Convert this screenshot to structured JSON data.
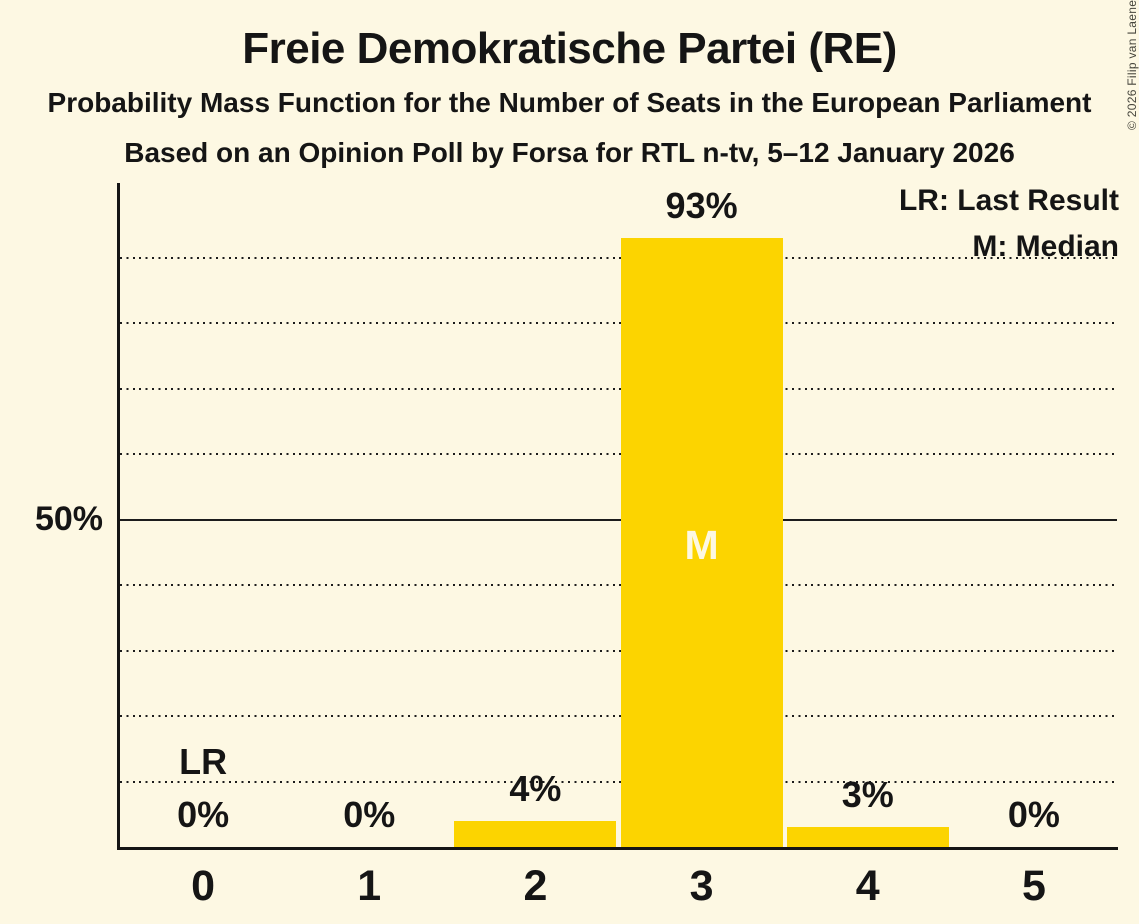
{
  "title": "Freie Demokratische Partei (RE)",
  "subtitle": "Probability Mass Function for the Number of Seats in the European Parliament",
  "source_line": "Based on an Opinion Poll by Forsa for RTL n-tv, 5–12 January 2026",
  "copyright": "© 2026 Filip van Laenen",
  "legend": {
    "last_result": "LR: Last Result",
    "median": "M: Median"
  },
  "y_axis": {
    "label": "50%"
  },
  "annotations": {
    "lr": "LR",
    "m": "M"
  },
  "colors": {
    "background": "#FDF8E3",
    "bar": "#FCD400",
    "text": "#151515",
    "median_label": "#FDF8E3"
  },
  "chart_data": {
    "type": "bar",
    "title": "Freie Demokratische Partei (RE)",
    "categories": [
      "0",
      "1",
      "2",
      "3",
      "4",
      "5"
    ],
    "values": [
      0,
      0,
      4,
      93,
      3,
      0
    ],
    "value_labels": [
      "0%",
      "0%",
      "4%",
      "93%",
      "3%",
      "0%"
    ],
    "xlabel": "",
    "ylabel": "",
    "ylim": [
      0,
      101.5
    ],
    "ytick_interval_pct": 10,
    "gridlines_pct": [
      10,
      20,
      30,
      40,
      50,
      60,
      70,
      80,
      90
    ],
    "solid_line_pct": 50,
    "median_seat_index": 3,
    "last_result_seat_index": 0,
    "legend_position": "top-right",
    "grid": "dotted-horizontal"
  }
}
